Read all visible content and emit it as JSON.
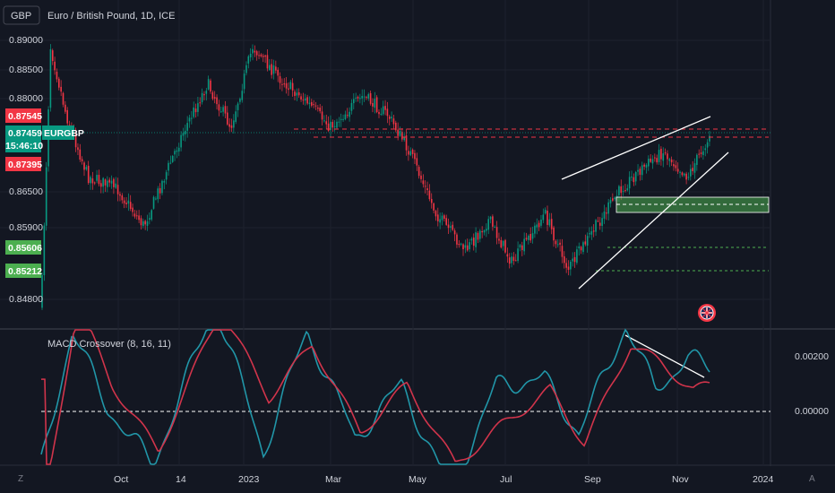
{
  "header": {
    "symbol_box": "GBP",
    "title": "Euro / British Pound, 1D, ICE"
  },
  "indicator": {
    "label": "MACD Crossover (8, 16, 11)",
    "ticks": [
      "0.00200",
      "0.00000"
    ]
  },
  "price_axis": {
    "ticks": [
      "0.89000",
      "0.88500",
      "0.88000",
      "0.86500",
      "0.85900",
      "0.84800"
    ],
    "tags": [
      {
        "label": "0.87545",
        "color": "#f23645"
      },
      {
        "label": "0.87459",
        "color": "#089981"
      },
      {
        "label": "15:46:10",
        "color": "#089981"
      },
      {
        "label": "0.87395",
        "color": "#f23645"
      },
      {
        "label": "0.85606",
        "color": "#4caf50"
      },
      {
        "label": "0.85212",
        "color": "#4caf50"
      }
    ],
    "symbol_tag": "EURGBP"
  },
  "time_axis": {
    "labels": [
      "Oct",
      "14",
      "2023",
      "Mar",
      "May",
      "Jul",
      "Sep",
      "Nov",
      "2024"
    ]
  },
  "corner": {
    "left": "Z",
    "right": "A"
  },
  "colors": {
    "up": "#089981",
    "down": "#f23645",
    "zone": "#4caf50",
    "macd": "#2196a8",
    "signal": "#d1344b"
  },
  "chart_data": {
    "type": "candlestick",
    "title": "Euro / British Pound, 1D, ICE",
    "interval": "1D",
    "last_price": 0.87459,
    "levels": [
      0.87545,
      0.87395,
      0.85606,
      0.85212
    ],
    "support_zone": [
      0.8604,
      0.8618
    ],
    "x_ticks": [
      "Oct",
      "14",
      "2023",
      "Mar",
      "May",
      "Jul",
      "Sep",
      "Nov",
      "2024"
    ],
    "y_ticks": [
      0.89,
      0.885,
      0.88,
      0.865,
      0.859,
      0.848
    ],
    "ohlc_path": [
      {
        "x": "2022-09-20",
        "close": 0.847
      },
      {
        "x": "2022-09-26",
        "close": 0.889
      },
      {
        "x": "2022-10-06",
        "close": 0.878
      },
      {
        "x": "2022-10-20",
        "close": 0.868
      },
      {
        "x": "2022-11-08",
        "close": 0.866
      },
      {
        "x": "2022-11-25",
        "close": 0.86
      },
      {
        "x": "2022-12-20",
        "close": 0.875
      },
      {
        "x": "2023-01-05",
        "close": 0.883
      },
      {
        "x": "2023-01-20",
        "close": 0.876
      },
      {
        "x": "2023-02-03",
        "close": 0.889
      },
      {
        "x": "2023-02-20",
        "close": 0.884
      },
      {
        "x": "2023-03-10",
        "close": 0.88
      },
      {
        "x": "2023-03-25",
        "close": 0.876
      },
      {
        "x": "2023-04-15",
        "close": 0.881
      },
      {
        "x": "2023-05-01",
        "close": 0.878
      },
      {
        "x": "2023-05-15",
        "close": 0.872
      },
      {
        "x": "2023-06-01",
        "close": 0.862
      },
      {
        "x": "2023-06-20",
        "close": 0.856
      },
      {
        "x": "2023-07-05",
        "close": 0.861
      },
      {
        "x": "2023-07-20",
        "close": 0.854
      },
      {
        "x": "2023-08-10",
        "close": 0.862
      },
      {
        "x": "2023-08-25",
        "close": 0.853
      },
      {
        "x": "2023-09-12",
        "close": 0.86
      },
      {
        "x": "2023-09-28",
        "close": 0.866
      },
      {
        "x": "2023-10-10",
        "close": 0.869
      },
      {
        "x": "2023-10-25",
        "close": 0.872
      },
      {
        "x": "2023-11-10",
        "close": 0.868
      },
      {
        "x": "2023-11-24",
        "close": 0.8746
      }
    ],
    "macd_path": [
      {
        "x": "2022-09-20",
        "macd": -0.002,
        "signal": -0.003
      },
      {
        "x": "2022-10-10",
        "macd": 0.003,
        "signal": 0.004
      },
      {
        "x": "2022-11-01",
        "macd": 0.0002,
        "signal": 0.001
      },
      {
        "x": "2022-12-01",
        "macd": -0.002,
        "signal": -0.0015
      },
      {
        "x": "2023-01-10",
        "macd": 0.004,
        "signal": 0.0038
      },
      {
        "x": "2023-02-10",
        "macd": -0.0015,
        "signal": 0.0005
      },
      {
        "x": "2023-03-10",
        "macd": 0.003,
        "signal": 0.0025
      },
      {
        "x": "2023-04-10",
        "macd": -0.001,
        "signal": -0.0008
      },
      {
        "x": "2023-05-10",
        "macd": 0.001,
        "signal": 0.001
      },
      {
        "x": "2023-06-10",
        "macd": -0.003,
        "signal": -0.002
      },
      {
        "x": "2023-07-10",
        "macd": 0.001,
        "signal": -0.0005
      },
      {
        "x": "2023-08-10",
        "macd": 0.0012,
        "signal": 0.0008
      },
      {
        "x": "2023-09-01",
        "macd": -0.0008,
        "signal": -0.0012
      },
      {
        "x": "2023-10-01",
        "macd": 0.0032,
        "signal": 0.0025
      },
      {
        "x": "2023-10-20",
        "macd": 0.0008,
        "signal": 0.0018
      },
      {
        "x": "2023-11-10",
        "macd": 0.002,
        "signal": 0.0008
      },
      {
        "x": "2023-11-24",
        "macd": 0.0016,
        "signal": 0.001
      }
    ]
  }
}
